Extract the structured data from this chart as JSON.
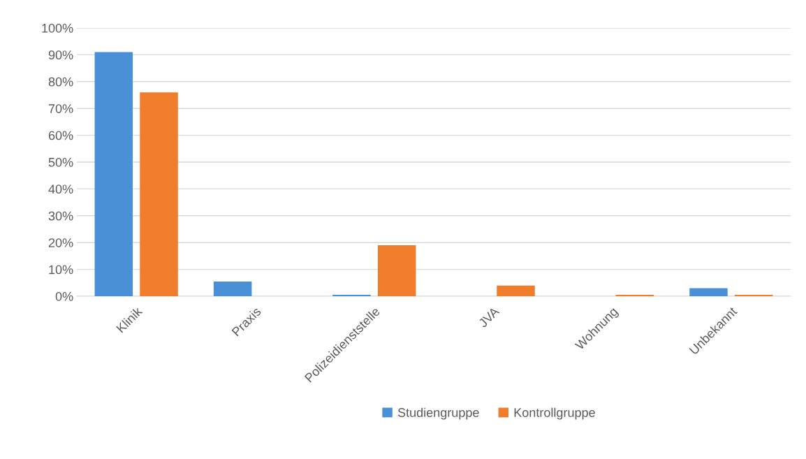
{
  "chart_data": {
    "type": "bar",
    "categories": [
      "Klinik",
      "Praxis",
      "Polizeidienststelle",
      "JVA",
      "Wohnung",
      "Unbekannt"
    ],
    "series": [
      {
        "name": "Studiengruppe",
        "color": "#4a90d6",
        "values": [
          91,
          5.5,
          0.5,
          0,
          0,
          3
        ]
      },
      {
        "name": "Kontrollgruppe",
        "color": "#f07d2c",
        "values": [
          76,
          0,
          19,
          4,
          0.5,
          0.5
        ]
      }
    ],
    "ylim": [
      0,
      100
    ],
    "yticks": [
      {
        "value": 0,
        "label": "0%"
      },
      {
        "value": 10,
        "label": "10%"
      },
      {
        "value": 20,
        "label": "20%"
      },
      {
        "value": 30,
        "label": "30%"
      },
      {
        "value": 40,
        "label": "40%"
      },
      {
        "value": 50,
        "label": "50%"
      },
      {
        "value": 60,
        "label": "60%"
      },
      {
        "value": 70,
        "label": "70%"
      },
      {
        "value": 80,
        "label": "80%"
      },
      {
        "value": 90,
        "label": "90%"
      },
      {
        "value": 100,
        "label": "100%"
      }
    ],
    "grid": "y",
    "legend": "bottom"
  }
}
